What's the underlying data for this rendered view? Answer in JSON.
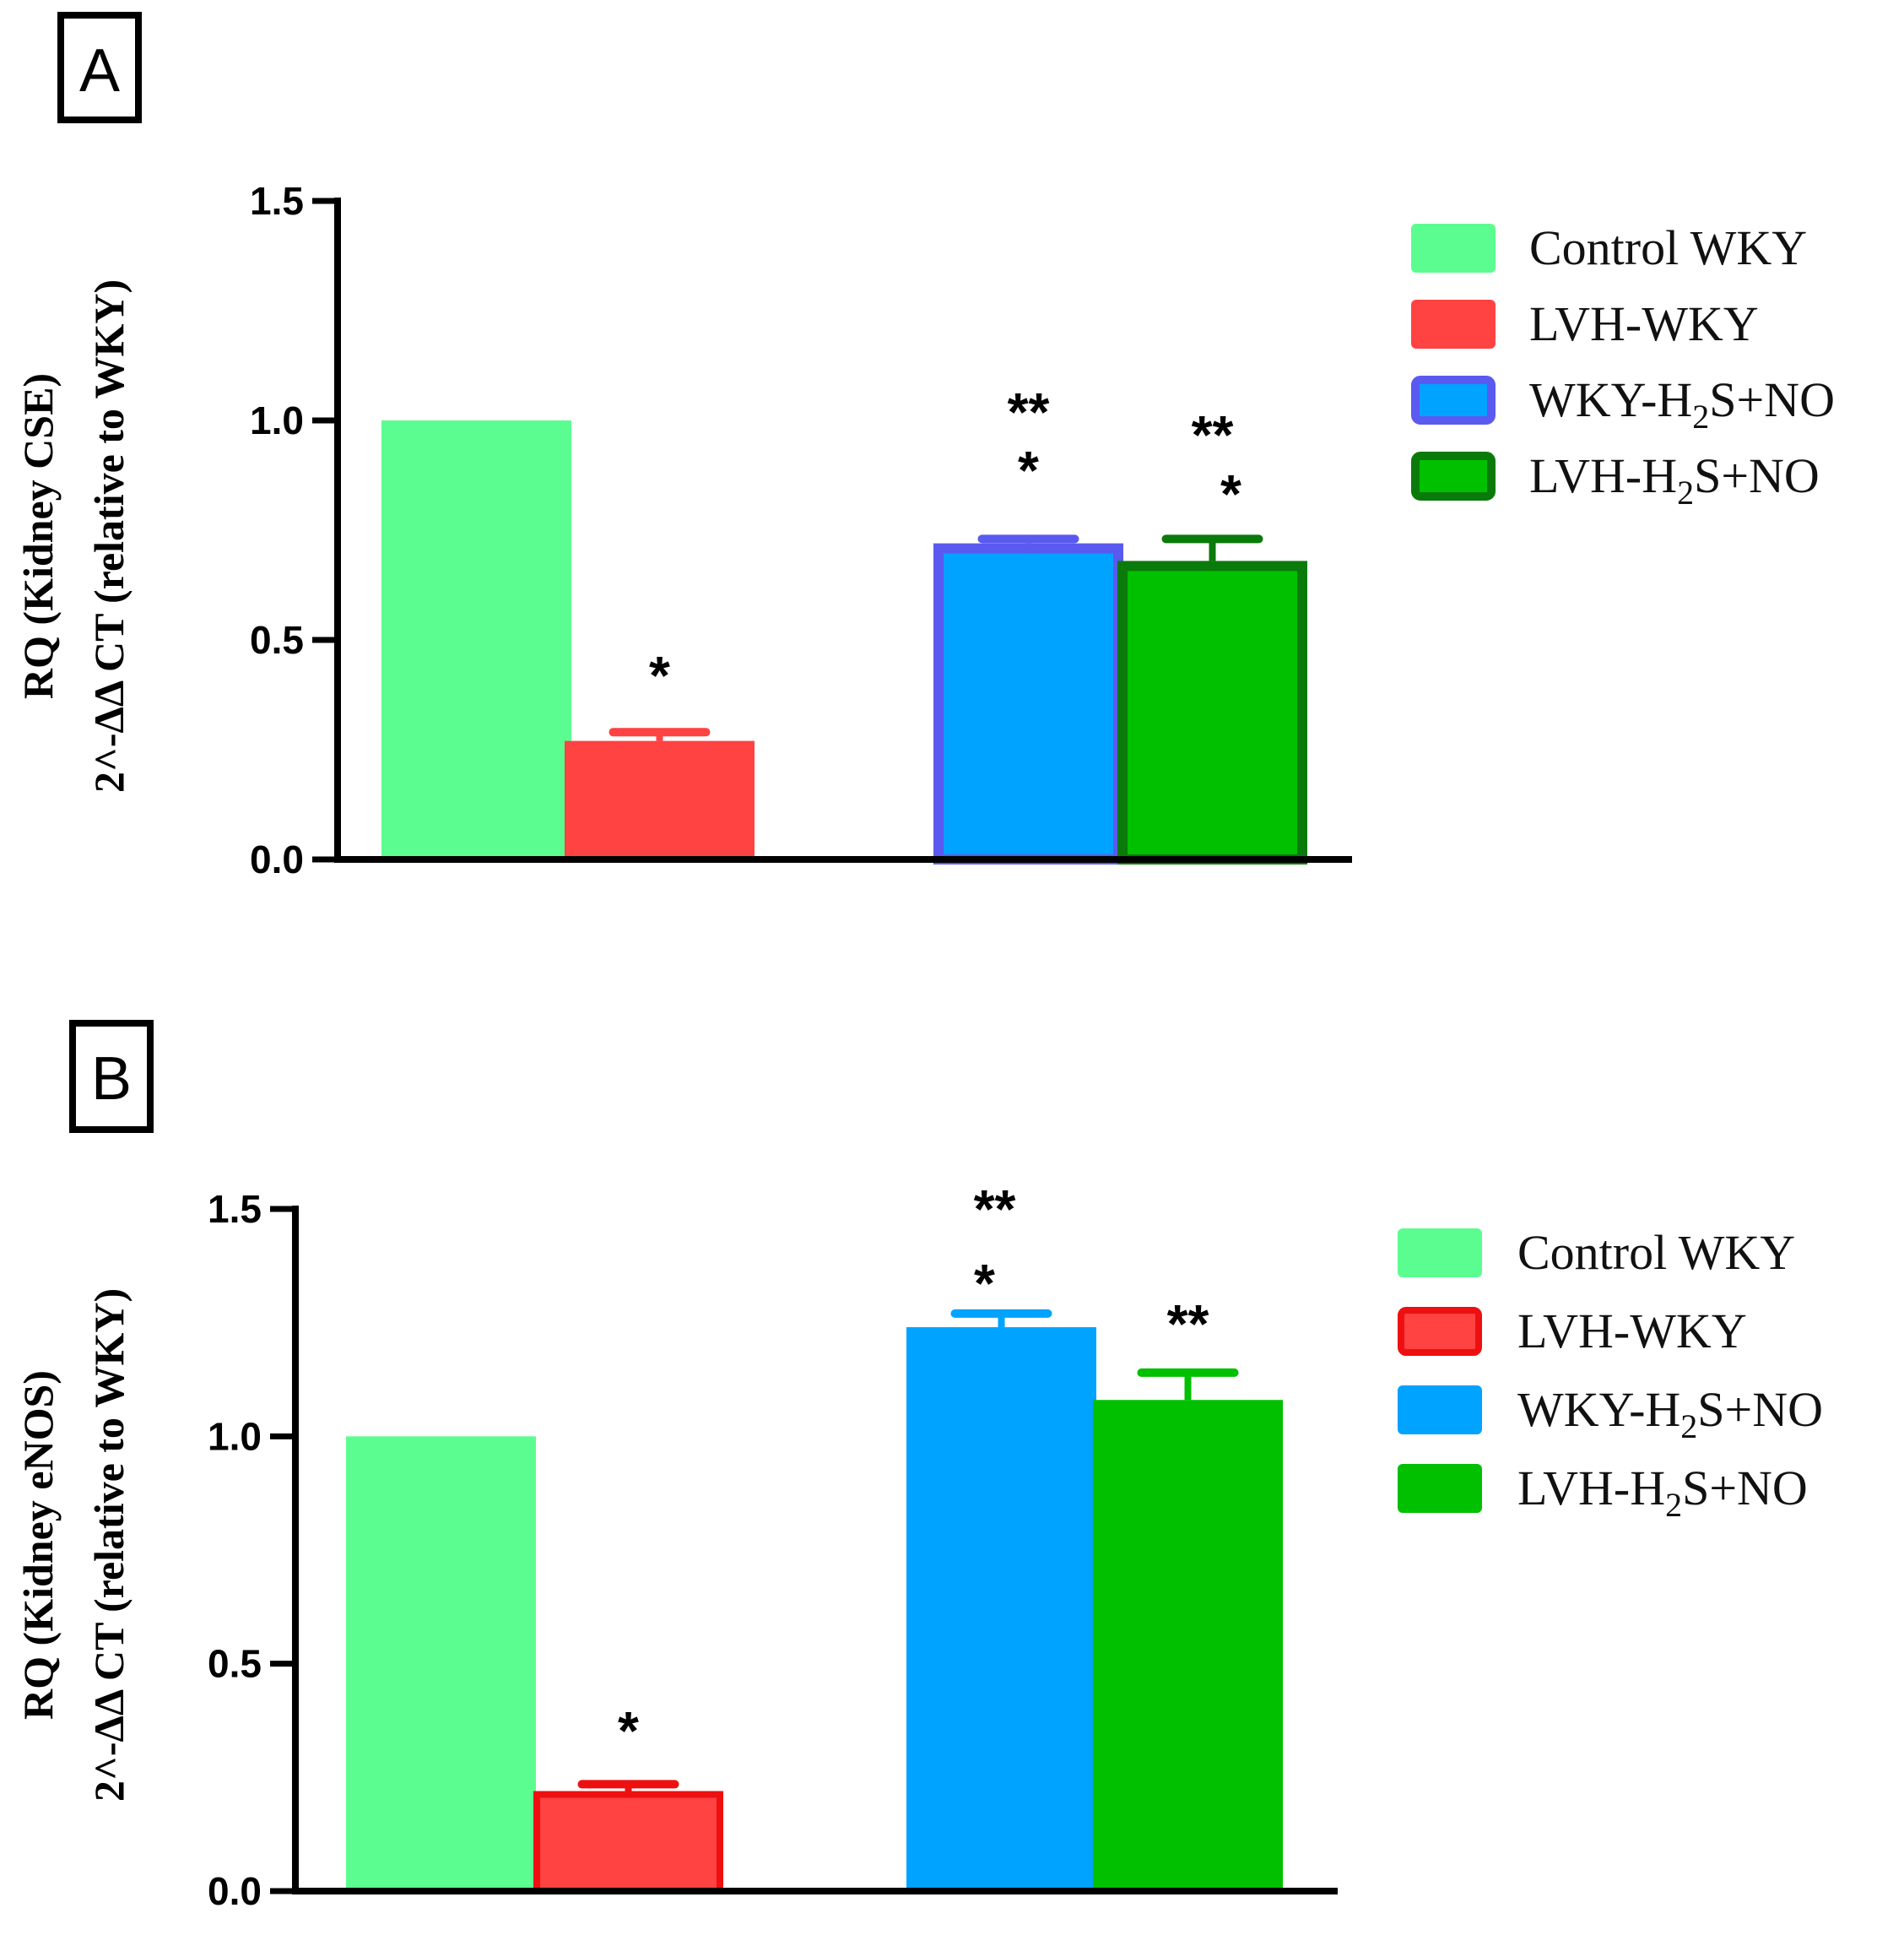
{
  "colors": {
    "control": "#5cfd90",
    "lvh": "#ff4242",
    "wky_h2s_no": "#00a3ff",
    "lvh_h2s_no": "#00c000",
    "wky_h2s_no_border": "#5a5af0",
    "lvh_h2s_no_border": "#0a7a0a",
    "lvh_border_b": "#ee1010",
    "axis": "#000000"
  },
  "legend": [
    {
      "label": "Control WKY",
      "pre": "Control WKY",
      "sub": "",
      "post": "",
      "color_key": "control"
    },
    {
      "label": "LVH-WKY",
      "pre": "LVH-WKY",
      "sub": "",
      "post": "",
      "color_key": "lvh"
    },
    {
      "label": "WKY-H2S+NO",
      "pre": "WKY-H",
      "sub": "2",
      "post": "S+NO",
      "color_key": "wky_h2s_no"
    },
    {
      "label": "LVH-H2S+NO",
      "pre": "LVH-H",
      "sub": "2",
      "post": "S+NO",
      "color_key": "lvh_h2s_no"
    }
  ],
  "chart_data": [
    {
      "panel": "A",
      "type": "bar",
      "title": "",
      "ylabel_line1": "RQ (Kidney CSE)",
      "ylabel_line2": "2^-ΔΔ CT (relative to WKY)",
      "ylim": [
        0,
        1.5
      ],
      "yticks": [
        "0.0",
        "0.5",
        "1.0",
        "1.5"
      ],
      "categories": [
        "Control WKY",
        "LVH-WKY",
        "WKY-H2S+NO",
        "LVH-H2S+NO"
      ],
      "values": [
        1.0,
        0.27,
        0.72,
        0.68
      ],
      "errors": [
        0.0,
        0.02,
        0.01,
        0.05
      ],
      "significance": [
        {
          "lines": []
        },
        {
          "lines": [
            "*"
          ]
        },
        {
          "lines": [
            "**",
            "*"
          ]
        },
        {
          "lines": [
            "**",
            "*"
          ]
        }
      ]
    },
    {
      "panel": "B",
      "type": "bar",
      "title": "",
      "ylabel_line1": "RQ (Kidney eNOS)",
      "ylabel_line2": "2^-ΔΔ CT (relative to WKY)",
      "ylim": [
        0,
        1.5
      ],
      "yticks": [
        "0.0",
        "0.5",
        "1.0",
        "1.5"
      ],
      "categories": [
        "Control WKY",
        "LVH-WKY",
        "WKY-H2S+NO",
        "LVH-H2S+NO"
      ],
      "values": [
        1.0,
        0.22,
        1.24,
        1.08
      ],
      "errors": [
        0.0,
        0.015,
        0.03,
        0.06
      ],
      "significance": [
        {
          "lines": []
        },
        {
          "lines": [
            "*"
          ]
        },
        {
          "lines": [
            "**",
            "*"
          ]
        },
        {
          "lines": [
            "**"
          ]
        }
      ]
    }
  ]
}
